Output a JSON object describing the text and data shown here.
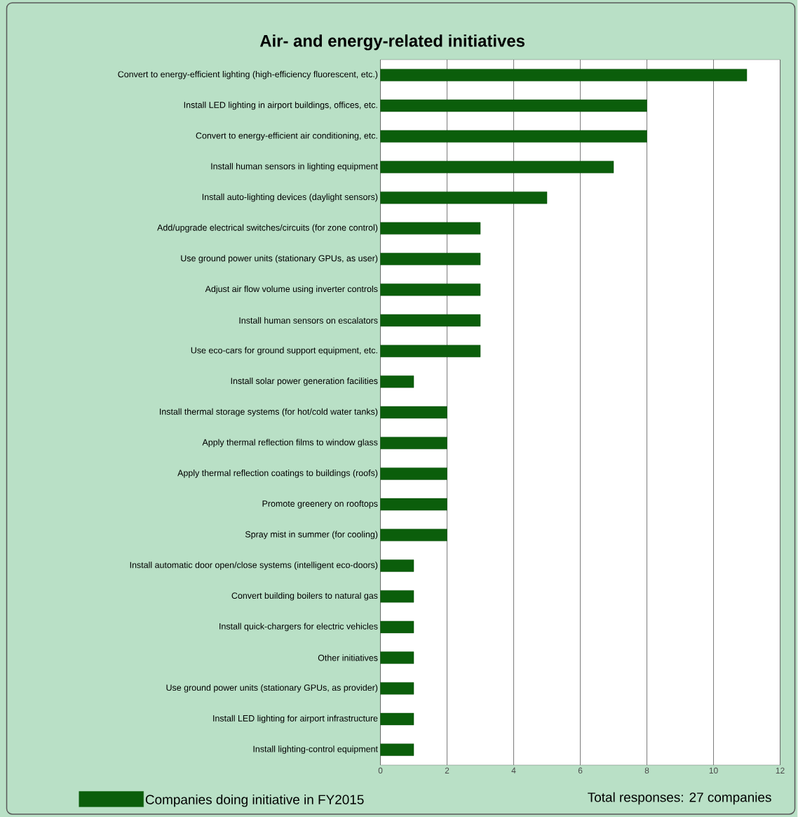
{
  "chart_data": {
    "type": "bar",
    "orientation": "horizontal",
    "title": "Air- and energy-related initiatives",
    "categories": [
      "Convert to energy-efficient lighting (high-efficiency fluorescent, etc.)",
      "Install LED lighting in airport buildings, offices, etc.",
      "Convert to energy-efficient air conditioning, etc.",
      "Install human sensors in lighting equipment",
      "Install auto-lighting devices (daylight sensors)",
      "Add/upgrade electrical switches/circuits (for zone control)",
      "Use ground power units (stationary GPUs, as user)",
      "Adjust air flow volume using inverter controls",
      "Install human sensors on escalators",
      "Use eco-cars for ground support equipment, etc.",
      "Install solar power generation facilities",
      "Install thermal storage systems (for hot/cold water tanks)",
      "Apply thermal reflection films to window glass",
      "Apply thermal reflection coatings to buildings (roofs)",
      "Promote greenery on rooftops",
      "Spray mist in summer (for cooling)",
      "Install automatic door open/close systems (intelligent eco-doors)",
      "Convert building boilers to natural gas",
      "Install quick-chargers for electric vehicles",
      "Other initiatives",
      "Use ground power units (stationary GPUs, as provider)",
      "Install LED lighting for airport infrastructure",
      "Install lighting-control equipment"
    ],
    "series": [
      {
        "name": "Companies doing initiative in FY2015",
        "color": "#0b5e0b",
        "values": [
          11,
          8,
          8,
          7,
          5,
          3,
          3,
          3,
          3,
          3,
          1,
          2,
          2,
          2,
          2,
          2,
          1,
          1,
          1,
          1,
          1,
          1,
          1
        ]
      }
    ],
    "xlim": [
      0,
      12
    ],
    "xticks": [
      0,
      2,
      4,
      6,
      8,
      10,
      12
    ],
    "grid": "x",
    "legend": "bottom left",
    "annotations": [
      "Total responses: 27 companies"
    ]
  }
}
